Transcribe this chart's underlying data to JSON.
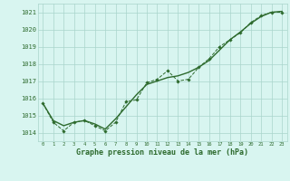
{
  "x": [
    0,
    1,
    2,
    3,
    4,
    5,
    6,
    7,
    8,
    9,
    10,
    11,
    12,
    13,
    14,
    15,
    16,
    17,
    18,
    19,
    20,
    21,
    22,
    23
  ],
  "y_jagged": [
    1015.7,
    1014.6,
    1014.1,
    1014.6,
    1014.7,
    1014.4,
    1014.1,
    1014.6,
    1015.8,
    1015.9,
    1016.9,
    1017.1,
    1017.6,
    1017.0,
    1017.1,
    1017.8,
    1018.3,
    1019.0,
    1019.4,
    1019.8,
    1020.4,
    1020.8,
    1021.0,
    1021.0
  ],
  "y_smooth": [
    1015.7,
    1014.7,
    1014.4,
    1014.6,
    1014.7,
    1014.5,
    1014.2,
    1014.8,
    1015.5,
    1016.2,
    1016.8,
    1017.0,
    1017.2,
    1017.3,
    1017.5,
    1017.8,
    1018.2,
    1018.8,
    1019.4,
    1019.85,
    1020.35,
    1020.75,
    1021.0,
    1021.05
  ],
  "line_color": "#2d6a2d",
  "bg_color": "#d8f5f0",
  "grid_color": "#aad4cc",
  "label_color": "#2d6a2d",
  "xlabel": "Graphe pression niveau de la mer (hPa)",
  "ylim": [
    1013.5,
    1021.5
  ],
  "yticks": [
    1014,
    1015,
    1016,
    1017,
    1018,
    1019,
    1020,
    1021
  ],
  "xticks": [
    0,
    1,
    2,
    3,
    4,
    5,
    6,
    7,
    8,
    9,
    10,
    11,
    12,
    13,
    14,
    15,
    16,
    17,
    18,
    19,
    20,
    21,
    22,
    23
  ],
  "xlim": [
    -0.5,
    23.5
  ]
}
